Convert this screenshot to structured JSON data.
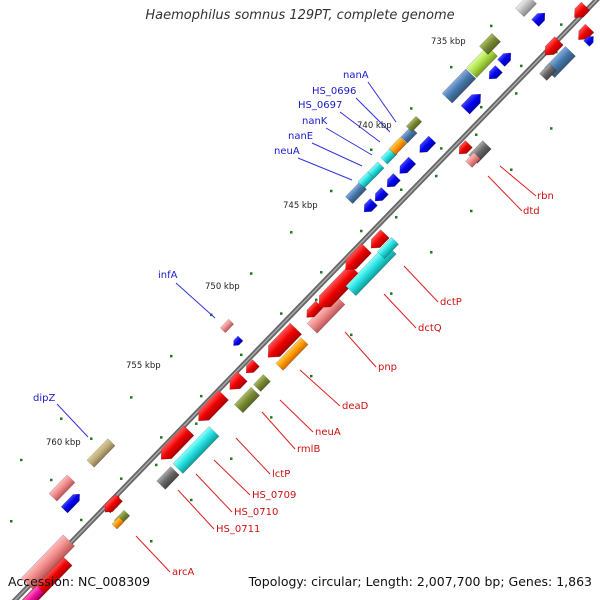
{
  "title": "Haemophilus somnus 129PT, complete genome",
  "footer": {
    "accession": "Accession: NC_008309",
    "summary": "Topology: circular; Length: 2,007,700 bp; Genes: 1,863"
  },
  "scale_labels": [
    "735 kbp",
    "740 kbp",
    "745 kbp",
    "750 kbp",
    "755 kbp",
    "760 kbp"
  ],
  "genes_top": [
    "nanA",
    "HS_0696",
    "HS_0697",
    "nanK",
    "nanE",
    "neuA",
    "infA",
    "dipZ"
  ],
  "genes_bottom": [
    "rbn",
    "dtd",
    "dctP",
    "dctQ",
    "pnp",
    "deaD",
    "neuA",
    "rmlB",
    "lctP",
    "HS_0709",
    "HS_0710",
    "HS_0711",
    "arcA"
  ],
  "colors": {
    "red": "#ee0000",
    "blue": "#0000ee",
    "cyan": "#22dddd",
    "pink": "#ee8888",
    "olive": "#778833",
    "orange": "#ff9900",
    "steel": "#4477aa",
    "gray": "#666666",
    "backbone": "#777777"
  }
}
